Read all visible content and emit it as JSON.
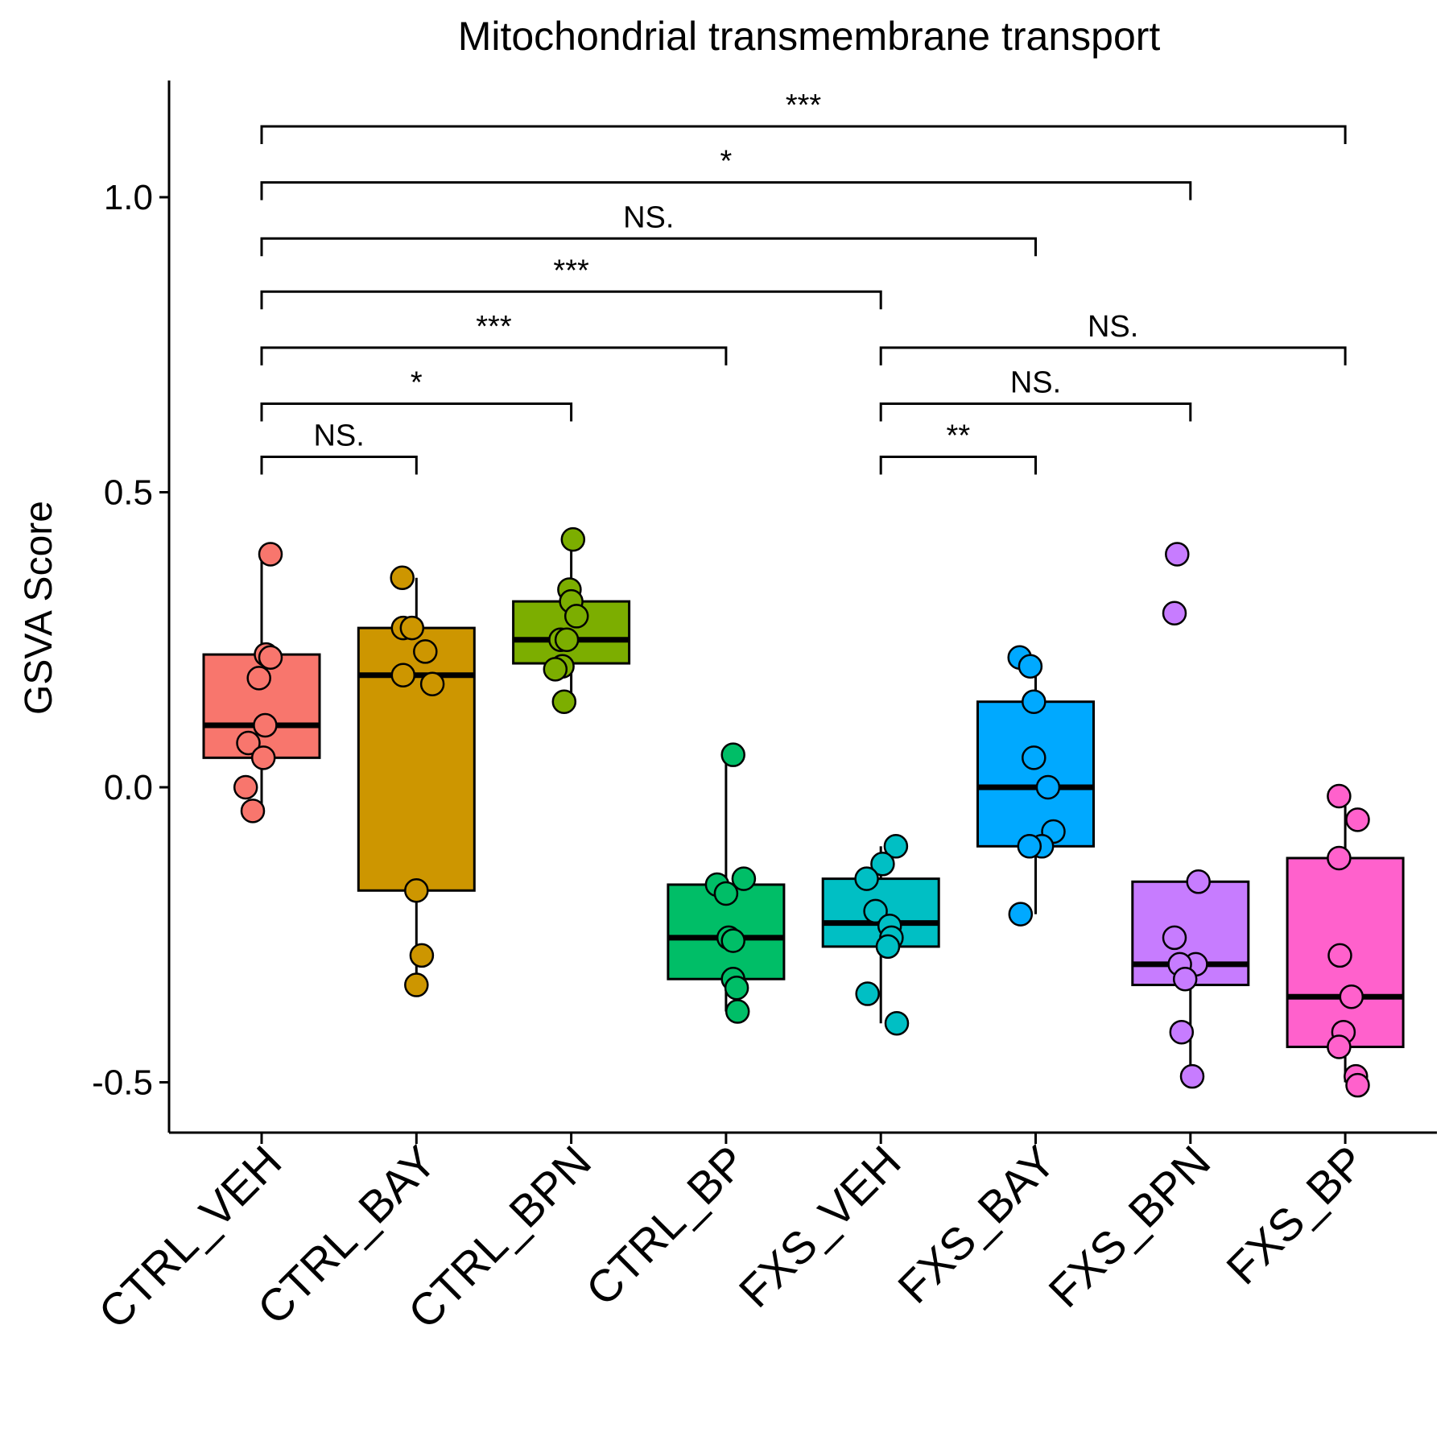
{
  "chart_data": {
    "type": "box",
    "title": "Mitochondrial transmembrane transport",
    "xlabel": "",
    "ylabel": "GSVA Score",
    "ylim": [
      -0.58,
      1.2
    ],
    "yticks": [
      -0.5,
      0.0,
      0.5,
      1.0
    ],
    "ytick_labels": [
      "-0.5",
      "0.0",
      "0.5",
      "1.0"
    ],
    "grid": false,
    "legend": "none",
    "categories": [
      "CTRL_VEH",
      "CTRL_BAY",
      "CTRL_BPN",
      "CTRL_BP",
      "FXS_VEH",
      "FXS_BAY",
      "FXS_BPN",
      "FXS_BP"
    ],
    "colors": [
      "#F8766D",
      "#CD9600",
      "#7CAE00",
      "#00BE67",
      "#00BFC4",
      "#00A9FF",
      "#C77CFF",
      "#FF61CC"
    ],
    "boxes": [
      {
        "whisker_low": -0.04,
        "q1": 0.05,
        "median": 0.105,
        "q3": 0.225,
        "whisker_high": 0.39
      },
      {
        "whisker_low": -0.33,
        "q1": -0.175,
        "median": 0.19,
        "q3": 0.27,
        "whisker_high": 0.355
      },
      {
        "whisker_low": 0.145,
        "q1": 0.21,
        "median": 0.25,
        "q3": 0.315,
        "whisker_high": 0.42
      },
      {
        "whisker_low": -0.38,
        "q1": -0.325,
        "median": -0.255,
        "q3": -0.165,
        "whisker_high": 0.055
      },
      {
        "whisker_low": -0.4,
        "q1": -0.27,
        "median": -0.23,
        "q3": -0.155,
        "whisker_high": -0.1
      },
      {
        "whisker_low": -0.215,
        "q1": -0.1,
        "median": 0.0,
        "q3": 0.145,
        "whisker_high": 0.22
      },
      {
        "whisker_low": -0.49,
        "q1": -0.335,
        "median": -0.3,
        "q3": -0.16,
        "whisker_high": -0.16
      },
      {
        "whisker_low": -0.5,
        "q1": -0.44,
        "median": -0.355,
        "q3": -0.12,
        "whisker_high": -0.015
      }
    ],
    "points": [
      [
        0.395,
        0.225,
        0.22,
        0.185,
        0.105,
        0.075,
        0.05,
        0.0,
        -0.04
      ],
      [
        0.355,
        0.27,
        0.27,
        0.23,
        0.19,
        0.175,
        -0.175,
        -0.285,
        -0.335
      ],
      [
        0.42,
        0.335,
        0.315,
        0.29,
        0.25,
        0.25,
        0.205,
        0.2,
        0.145
      ],
      [
        0.055,
        -0.155,
        -0.165,
        -0.18,
        -0.255,
        -0.26,
        -0.325,
        -0.34,
        -0.38
      ],
      [
        -0.1,
        -0.13,
        -0.155,
        -0.21,
        -0.235,
        -0.255,
        -0.27,
        -0.35,
        -0.4
      ],
      [
        0.22,
        0.205,
        0.145,
        0.05,
        0.0,
        -0.075,
        -0.1,
        -0.1,
        -0.215
      ],
      [
        0.395,
        0.295,
        -0.16,
        -0.255,
        -0.3,
        -0.3,
        -0.325,
        -0.415,
        -0.49
      ],
      [
        -0.015,
        -0.055,
        -0.12,
        -0.285,
        -0.355,
        -0.415,
        -0.44,
        -0.49,
        -0.505
      ]
    ],
    "jitter": [
      [
        0.1,
        0.05,
        0.1,
        -0.03,
        0.04,
        -0.15,
        0.02,
        -0.18,
        -0.1
      ],
      [
        -0.16,
        -0.15,
        -0.05,
        0.1,
        -0.15,
        0.18,
        0.0,
        0.06,
        0.0
      ],
      [
        0.02,
        -0.02,
        0.0,
        0.06,
        -0.12,
        -0.05,
        -0.1,
        -0.18,
        -0.08
      ],
      [
        0.08,
        0.2,
        -0.1,
        0.0,
        0.03,
        0.08,
        0.08,
        0.12,
        0.13
      ],
      [
        0.17,
        0.02,
        -0.16,
        -0.06,
        0.1,
        0.12,
        0.08,
        -0.15,
        0.18
      ],
      [
        -0.18,
        -0.06,
        -0.02,
        -0.02,
        0.14,
        0.2,
        0.07,
        -0.07,
        -0.17
      ],
      [
        -0.15,
        -0.18,
        0.09,
        -0.18,
        0.06,
        -0.12,
        -0.06,
        -0.1,
        0.02
      ],
      [
        -0.07,
        0.14,
        -0.07,
        -0.06,
        0.07,
        -0.02,
        -0.07,
        0.12,
        0.14
      ]
    ],
    "comparisons": [
      {
        "from": "CTRL_VEH",
        "to": "CTRL_BAY",
        "label": "NS.",
        "y": 0.56
      },
      {
        "from": "CTRL_VEH",
        "to": "CTRL_BPN",
        "label": "*",
        "y": 0.65
      },
      {
        "from": "CTRL_VEH",
        "to": "CTRL_BP",
        "label": "***",
        "y": 0.745
      },
      {
        "from": "CTRL_VEH",
        "to": "FXS_VEH",
        "label": "***",
        "y": 0.84
      },
      {
        "from": "CTRL_VEH",
        "to": "FXS_BAY",
        "label": "NS.",
        "y": 0.93
      },
      {
        "from": "CTRL_VEH",
        "to": "FXS_BPN",
        "label": "*",
        "y": 1.025
      },
      {
        "from": "CTRL_VEH",
        "to": "FXS_BP",
        "label": "***",
        "y": 1.12
      },
      {
        "from": "FXS_VEH",
        "to": "FXS_BAY",
        "label": "**",
        "y": 0.56
      },
      {
        "from": "FXS_VEH",
        "to": "FXS_BPN",
        "label": "NS.",
        "y": 0.65
      },
      {
        "from": "FXS_VEH",
        "to": "FXS_BP",
        "label": "NS.",
        "y": 0.745
      }
    ]
  }
}
